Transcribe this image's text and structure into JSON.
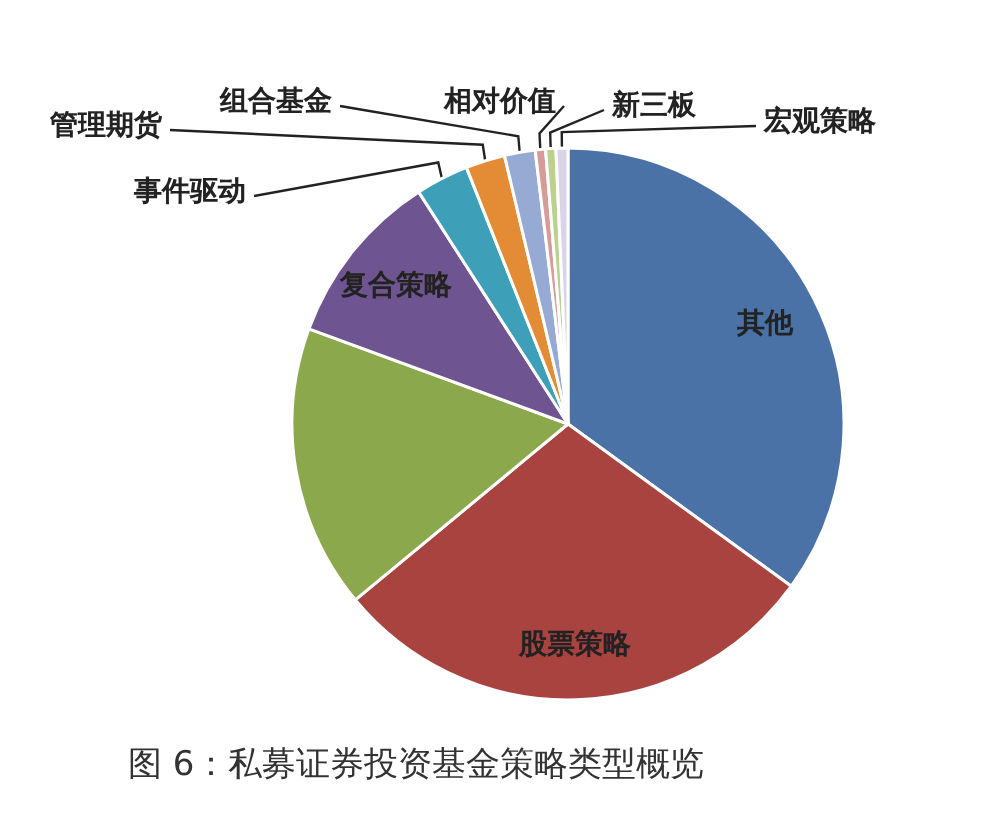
{
  "chart_data": {
    "type": "pie",
    "categories": [
      "其他",
      "股票策略",
      null,
      "复合策略",
      "事件驱动",
      "管理期货",
      "组合基金",
      "相对价值",
      "新三板",
      "宏观策略"
    ],
    "values": [
      35.0,
      29.0,
      16.6,
      10.3,
      3.1,
      2.3,
      1.8,
      0.6,
      0.6,
      0.7
    ],
    "colors": [
      "#4a72a6",
      "#a9433f",
      "#8ba94c",
      "#6e5591",
      "#3e9fb8",
      "#e48b35",
      "#97aad4",
      "#d79c9a",
      "#bcd18e",
      "#d9d4e8"
    ],
    "annotations": [
      "图 6：私募证券投资基金策略类型概览"
    ]
  }
}
